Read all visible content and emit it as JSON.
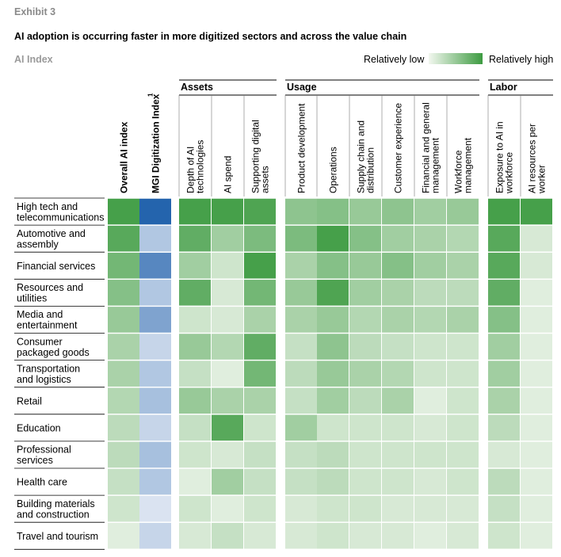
{
  "header": {
    "exhibit": "Exhibit 3",
    "title": "AI adoption is occurring faster in more digitized sectors and across the value chain",
    "subtitle": "AI Index",
    "legend_low": "Relatively low",
    "legend_high": "Relatively high"
  },
  "colors": {
    "green_low": "#f2f7ef",
    "green_high": "#3d9b41",
    "blue_low": "#eef1f8",
    "blue_high": "#2464ad"
  },
  "chart_data": {
    "type": "heatmap",
    "title": "AI adoption is occurring faster in more digitized sectors and across the value chain",
    "subtitle": "AI Index",
    "legend": [
      "Relatively low",
      "Relatively high"
    ],
    "groups": [
      {
        "name": "",
        "columns": [
          "Overall AI index",
          "MGI Digitization Index"
        ]
      },
      {
        "name": "Assets",
        "columns": [
          "Depth of AI technologies",
          "AI spend",
          "Supporting digital assets"
        ]
      },
      {
        "name": "Usage",
        "columns": [
          "Product development",
          "Operations",
          "Supply chain and distribution",
          "Customer experience",
          "Financial and general management",
          "Workforce management"
        ]
      },
      {
        "name": "Labor",
        "columns": [
          "Exposure to AI in workforce",
          "AI resources per worker"
        ]
      }
    ],
    "column_labels": [
      {
        "lines": [
          "Overall AI index"
        ],
        "bold": true,
        "sup": ""
      },
      {
        "lines": [
          "MGI Digitization Index"
        ],
        "bold": true,
        "sup": "1"
      },
      {
        "lines": [
          "Depth of AI",
          "technologies"
        ],
        "bold": false,
        "sup": ""
      },
      {
        "lines": [
          "AI spend"
        ],
        "bold": false,
        "sup": ""
      },
      {
        "lines": [
          "Supporting digital",
          "assets"
        ],
        "bold": false,
        "sup": ""
      },
      {
        "lines": [
          "Product development"
        ],
        "bold": false,
        "sup": ""
      },
      {
        "lines": [
          "Operations"
        ],
        "bold": false,
        "sup": ""
      },
      {
        "lines": [
          "Supply chain and",
          "distribution"
        ],
        "bold": false,
        "sup": ""
      },
      {
        "lines": [
          "Customer experience"
        ],
        "bold": false,
        "sup": ""
      },
      {
        "lines": [
          "Financial and general",
          "management"
        ],
        "bold": false,
        "sup": ""
      },
      {
        "lines": [
          "Workforce",
          "management"
        ],
        "bold": false,
        "sup": ""
      },
      {
        "lines": [
          "Exposure to AI in",
          "workforce"
        ],
        "bold": false,
        "sup": ""
      },
      {
        "lines": [
          "AI resources per",
          "worker"
        ],
        "bold": false,
        "sup": ""
      }
    ],
    "rows": [
      {
        "label": [
          "High tech and",
          "telecommunications"
        ],
        "values": [
          0.95,
          1.0,
          0.95,
          0.95,
          0.9,
          0.55,
          0.6,
          0.5,
          0.55,
          0.45,
          0.5,
          0.95,
          0.95
        ]
      },
      {
        "label": [
          "Automotive and",
          "assembly"
        ],
        "values": [
          0.85,
          0.3,
          0.8,
          0.45,
          0.65,
          0.65,
          0.95,
          0.6,
          0.45,
          0.4,
          0.35,
          0.85,
          0.15
        ]
      },
      {
        "label": [
          "Financial services"
        ],
        "values": [
          0.7,
          0.75,
          0.45,
          0.2,
          0.95,
          0.4,
          0.6,
          0.5,
          0.6,
          0.45,
          0.4,
          0.85,
          0.15
        ]
      },
      {
        "label": [
          "Resources and",
          "utilities"
        ],
        "values": [
          0.6,
          0.3,
          0.8,
          0.15,
          0.7,
          0.5,
          0.9,
          0.45,
          0.4,
          0.3,
          0.3,
          0.8,
          0.1
        ]
      },
      {
        "label": [
          "Media and",
          "entertainment"
        ],
        "values": [
          0.5,
          0.55,
          0.2,
          0.15,
          0.4,
          0.4,
          0.5,
          0.35,
          0.4,
          0.35,
          0.4,
          0.6,
          0.1
        ]
      },
      {
        "label": [
          "Consumer",
          "packaged goods"
        ],
        "values": [
          0.4,
          0.2,
          0.5,
          0.35,
          0.8,
          0.25,
          0.55,
          0.3,
          0.25,
          0.2,
          0.2,
          0.45,
          0.1
        ]
      },
      {
        "label": [
          "Transportation",
          "and logistics"
        ],
        "values": [
          0.4,
          0.3,
          0.25,
          0.1,
          0.7,
          0.3,
          0.5,
          0.4,
          0.35,
          0.2,
          0.2,
          0.45,
          0.1
        ]
      },
      {
        "label": [
          "Retail"
        ],
        "values": [
          0.35,
          0.35,
          0.5,
          0.4,
          0.4,
          0.25,
          0.45,
          0.3,
          0.4,
          0.1,
          0.2,
          0.4,
          0.1
        ]
      },
      {
        "label": [
          "Education"
        ],
        "values": [
          0.3,
          0.2,
          0.25,
          0.85,
          0.2,
          0.45,
          0.2,
          0.2,
          0.2,
          0.15,
          0.2,
          0.3,
          0.1
        ]
      },
      {
        "label": [
          "Professional",
          "services"
        ],
        "values": [
          0.3,
          0.35,
          0.2,
          0.15,
          0.25,
          0.25,
          0.3,
          0.2,
          0.2,
          0.2,
          0.2,
          0.15,
          0.1
        ]
      },
      {
        "label": [
          "Health care"
        ],
        "values": [
          0.25,
          0.3,
          0.1,
          0.45,
          0.25,
          0.25,
          0.3,
          0.2,
          0.2,
          0.15,
          0.2,
          0.3,
          0.1
        ]
      },
      {
        "label": [
          "Building materials",
          "and construction"
        ],
        "values": [
          0.2,
          0.1,
          0.2,
          0.1,
          0.2,
          0.15,
          0.2,
          0.2,
          0.15,
          0.15,
          0.15,
          0.25,
          0.1
        ]
      },
      {
        "label": [
          "Travel and tourism"
        ],
        "values": [
          0.1,
          0.2,
          0.15,
          0.25,
          0.15,
          0.15,
          0.2,
          0.15,
          0.15,
          0.1,
          0.15,
          0.2,
          0.1
        ]
      }
    ],
    "scale": [
      0,
      1
    ],
    "blue_columns": [
      1
    ]
  }
}
